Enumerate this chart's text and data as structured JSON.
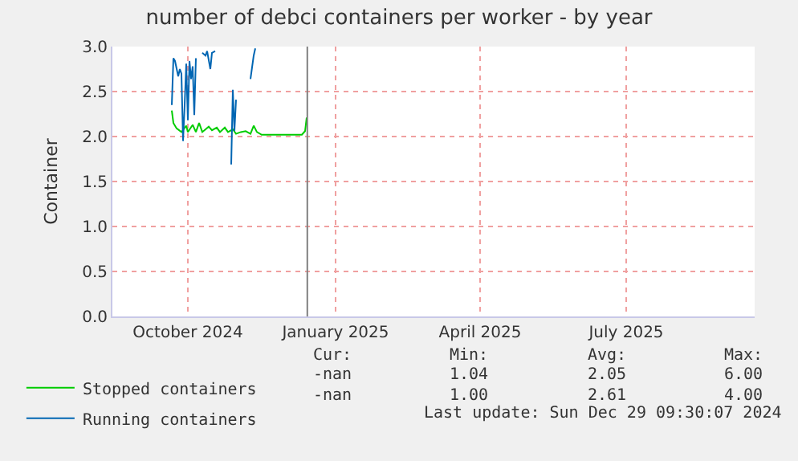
{
  "chart_data": {
    "type": "line",
    "title": "number of debci containers per worker - by year",
    "ylabel": "Container",
    "xlim": [
      "2024-08-30",
      "2025-10-04"
    ],
    "xticks": [
      {
        "value": "2024-10-16",
        "label": "October 2024"
      },
      {
        "value": "2025-01-16",
        "label": "January 2025"
      },
      {
        "value": "2025-04-16",
        "label": "April 2025"
      },
      {
        "value": "2025-07-16",
        "label": "July 2025"
      }
    ],
    "ylim": [
      0,
      3
    ],
    "yticks": [
      {
        "value": 0,
        "label": "0.0"
      },
      {
        "value": 0.5,
        "label": "0.5"
      },
      {
        "value": 1,
        "label": "1.0"
      },
      {
        "value": 1.5,
        "label": "1.5"
      },
      {
        "value": 2,
        "label": "2.0"
      },
      {
        "value": 2.5,
        "label": "2.5"
      },
      {
        "value": 3,
        "label": "3.0"
      }
    ],
    "grid": true,
    "legend": "bottom",
    "marker": "none",
    "line_style": "solid",
    "series": [
      {
        "name": "Stopped containers",
        "color": "#00cc00",
        "x": [
          "2024-10-06",
          "2024-10-07",
          "2024-10-09",
          "2024-10-12",
          "2024-10-15",
          "2024-10-16",
          "2024-10-19",
          "2024-10-21",
          "2024-10-23",
          "2024-10-25",
          "2024-10-29",
          "2024-10-31",
          "2024-11-03",
          "2024-11-05",
          "2024-11-08",
          "2024-11-10",
          "2024-11-13",
          "2024-11-15",
          "2024-11-18",
          "2024-11-21",
          "2024-11-24",
          "2024-11-26",
          "2024-11-28",
          "2024-12-01",
          "2024-12-14",
          "2024-12-26",
          "2024-12-28",
          "2024-12-29"
        ],
        "values": [
          2.29,
          2.15,
          2.09,
          2.05,
          2.12,
          2.05,
          2.13,
          2.05,
          2.15,
          2.05,
          2.11,
          2.07,
          2.1,
          2.05,
          2.1,
          2.05,
          2.08,
          2.03,
          2.05,
          2.06,
          2.03,
          2.12,
          2.05,
          2.02,
          2.02,
          2.02,
          2.06,
          2.21
        ]
      },
      {
        "name": "Running containers",
        "color": "#0066b3",
        "x": [
          "2024-10-06",
          "2024-10-07",
          "2024-10-08",
          "2024-10-10",
          "2024-10-11",
          "2024-10-12",
          "2024-10-13",
          "2024-10-14",
          "2024-10-15",
          "2024-10-16",
          "2024-10-17",
          "2024-10-18",
          "2024-10-19",
          "2024-10-20",
          "2024-10-21",
          "2024-10-23",
          "2024-10-25",
          "2024-10-27",
          "2024-10-28",
          "2024-10-30",
          "2024-10-31",
          "2024-11-02",
          "2024-11-05",
          "2024-11-12",
          "2024-11-13",
          "2024-11-14",
          "2024-11-15",
          "2024-11-20",
          "2024-11-24",
          "2024-11-26",
          "2024-11-27"
        ],
        "values": [
          2.35,
          2.87,
          2.84,
          2.67,
          2.75,
          2.7,
          1.95,
          2.35,
          2.81,
          2.18,
          2.84,
          2.64,
          2.78,
          2.24,
          2.87,
          null,
          2.93,
          2.9,
          2.95,
          2.75,
          2.93,
          2.95,
          null,
          1.69,
          2.52,
          2.06,
          2.41,
          null,
          2.64,
          2.9,
          2.98
        ]
      }
    ],
    "ref_lines": [
      {
        "axis": "x",
        "value": "2024-12-29T09:30",
        "color": "#808080",
        "line_style": "solid"
      }
    ],
    "annotations": [
      "Cur:",
      "Min:",
      "Avg:",
      "Max:",
      "-nan",
      "1.04",
      "2.05",
      "6.00",
      "-nan",
      "1.00",
      "2.61",
      "4.00",
      "Last update: Sun Dec 29 09:30:07 2024"
    ]
  }
}
